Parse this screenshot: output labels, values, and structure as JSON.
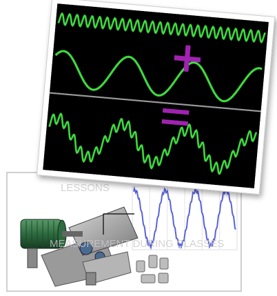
{
  "watermark": {
    "top": "LESSONS",
    "bottom": "MEASUREMENT DURING CLASSES"
  }
}
